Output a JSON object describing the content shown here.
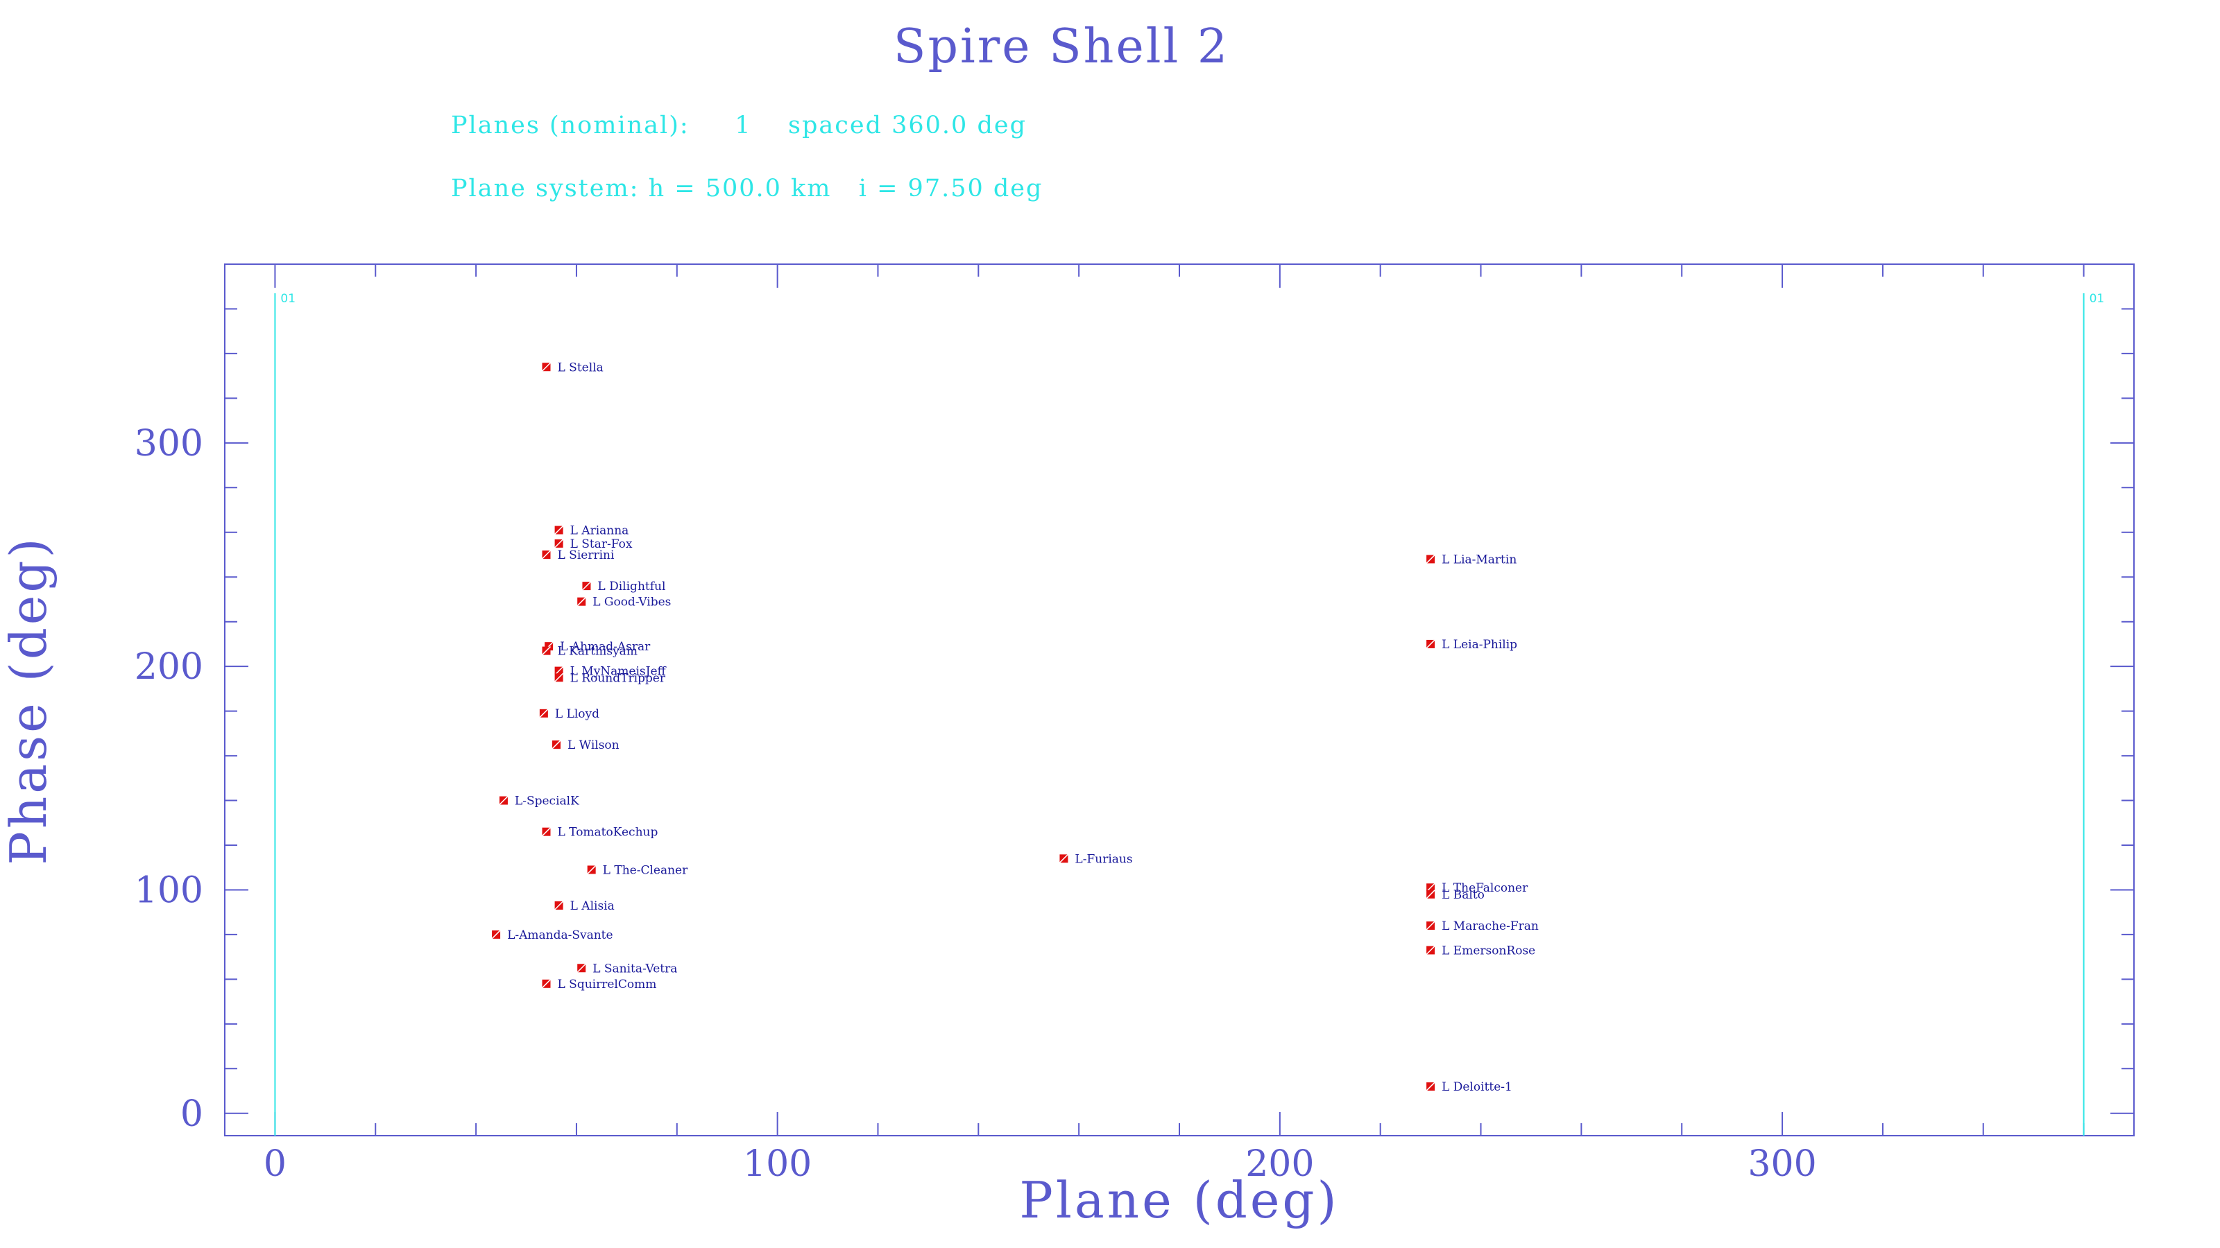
{
  "chart_data": {
    "type": "scatter",
    "title": "Spire Shell 2",
    "info_lines": [
      "Planes (nominal):     1    spaced 360.0 deg",
      "Plane system: h = 500.0 km   i = 97.50 deg"
    ],
    "xlabel": "Plane (deg)",
    "ylabel": "Phase (deg)",
    "xlim": [
      -10,
      370
    ],
    "ylim": [
      -10,
      380
    ],
    "x_ticks": [
      0,
      100,
      200,
      300
    ],
    "y_ticks": [
      0,
      100,
      200,
      300
    ],
    "grid": false,
    "plane_markers": [
      {
        "x": 0,
        "label": "01"
      },
      {
        "x": 360,
        "label": "01"
      }
    ],
    "points": [
      {
        "name": "L Stella",
        "x": 54,
        "y": 334
      },
      {
        "name": "L Arianna",
        "x": 56.5,
        "y": 261
      },
      {
        "name": "L Star-Fox",
        "x": 56.5,
        "y": 255
      },
      {
        "name": "L Sierrini",
        "x": 54,
        "y": 250
      },
      {
        "name": "L Lia-Martin",
        "x": 230,
        "y": 248
      },
      {
        "name": "L Dilightful",
        "x": 62,
        "y": 236
      },
      {
        "name": "L Good-Vibes",
        "x": 61,
        "y": 229
      },
      {
        "name": "L Ahmad-Asrar",
        "x": 54.5,
        "y": 209
      },
      {
        "name": "L Karthisyam",
        "x": 54,
        "y": 207
      },
      {
        "name": "L Leia-Philip",
        "x": 230,
        "y": 210
      },
      {
        "name": "L MyNameisJeff",
        "x": 56.5,
        "y": 198
      },
      {
        "name": "L RoundTripper",
        "x": 56.5,
        "y": 195
      },
      {
        "name": "L Lloyd",
        "x": 53.5,
        "y": 179
      },
      {
        "name": "L Wilson",
        "x": 56,
        "y": 165
      },
      {
        "name": "L-SpecialK",
        "x": 45.5,
        "y": 140
      },
      {
        "name": "L TomatoKechup",
        "x": 54,
        "y": 126
      },
      {
        "name": "L-Furiaus",
        "x": 157,
        "y": 114
      },
      {
        "name": "L The-Cleaner",
        "x": 63,
        "y": 109
      },
      {
        "name": "L TheFalconer",
        "x": 230,
        "y": 101
      },
      {
        "name": "L Balto",
        "x": 230,
        "y": 98
      },
      {
        "name": "L Alisia",
        "x": 56.5,
        "y": 93
      },
      {
        "name": "L Marache-Fran",
        "x": 230,
        "y": 84
      },
      {
        "name": "L-Amanda-Svante",
        "x": 44,
        "y": 80
      },
      {
        "name": "L EmersonRose",
        "x": 230,
        "y": 73
      },
      {
        "name": "L Sanita-Vetra",
        "x": 61,
        "y": 65
      },
      {
        "name": "L SquirrelComm",
        "x": 54,
        "y": 58
      },
      {
        "name": "L Deloitte-1",
        "x": 230,
        "y": 12
      }
    ]
  },
  "colors": {
    "axis": "#5a5acd",
    "title": "#5a5acd",
    "info": "#2ee6e6",
    "plane_line": "#2ee6e6",
    "marker": "#e01010",
    "point_label": "#1a1a9a"
  }
}
